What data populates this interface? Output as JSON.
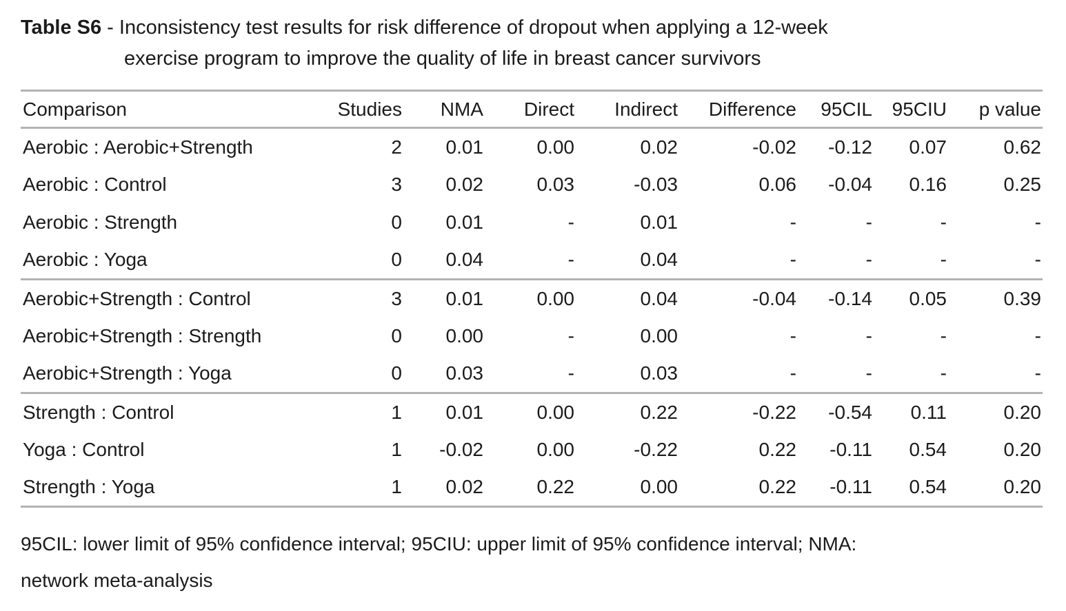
{
  "title": {
    "label": "Table S6",
    "separator": " - ",
    "line1": "Inconsistency test results for risk difference of dropout when applying a 12-week",
    "line2": "exercise program to improve the quality of life in breast cancer survivors"
  },
  "table": {
    "columns": [
      {
        "key": "comparison",
        "label": "Comparison"
      },
      {
        "key": "studies",
        "label": "Studies"
      },
      {
        "key": "nma",
        "label": "NMA"
      },
      {
        "key": "direct",
        "label": "Direct"
      },
      {
        "key": "indirect",
        "label": "Indirect"
      },
      {
        "key": "difference",
        "label": "Difference"
      },
      {
        "key": "ci-lower-95",
        "label": "95CIL"
      },
      {
        "key": "ci-upper-95",
        "label": "95CIU"
      },
      {
        "key": "p-value",
        "label": "p value"
      }
    ],
    "groups": [
      {
        "rows": [
          [
            "Aerobic : Aerobic+Strength",
            "2",
            "0.01",
            "0.00",
            "0.02",
            "-0.02",
            "-0.12",
            "0.07",
            "0.62"
          ],
          [
            "Aerobic : Control",
            "3",
            "0.02",
            "0.03",
            "-0.03",
            "0.06",
            "-0.04",
            "0.16",
            "0.25"
          ],
          [
            "Aerobic : Strength",
            "0",
            "0.01",
            "-",
            "0.01",
            "-",
            "-",
            "-",
            "-"
          ],
          [
            "Aerobic : Yoga",
            "0",
            "0.04",
            "-",
            "0.04",
            "-",
            "-",
            "-",
            "-"
          ]
        ]
      },
      {
        "rows": [
          [
            "Aerobic+Strength : Control",
            "3",
            "0.01",
            "0.00",
            "0.04",
            "-0.04",
            "-0.14",
            "0.05",
            "0.39"
          ],
          [
            "Aerobic+Strength : Strength",
            "0",
            "0.00",
            "-",
            "0.00",
            "-",
            "-",
            "-",
            "-"
          ],
          [
            "Aerobic+Strength : Yoga",
            "0",
            "0.03",
            "-",
            "0.03",
            "-",
            "-",
            "-",
            "-"
          ]
        ]
      },
      {
        "rows": [
          [
            "Strength : Control",
            "1",
            "0.01",
            "0.00",
            "0.22",
            "-0.22",
            "-0.54",
            "0.11",
            "0.20"
          ],
          [
            "Yoga : Control",
            "1",
            "-0.02",
            "0.00",
            "-0.22",
            "0.22",
            "-0.11",
            "0.54",
            "0.20"
          ],
          [
            "Strength : Yoga",
            "1",
            "0.02",
            "0.22",
            "0.00",
            "0.22",
            "-0.11",
            "0.54",
            "0.20"
          ]
        ]
      }
    ]
  },
  "footnote": {
    "line1": "95CIL: lower limit of 95% confidence interval; 95CIU: upper limit of 95% confidence interval; NMA:",
    "line2": "network meta-analysis"
  },
  "colors": {
    "rule": "#b3b3b3",
    "text": "#1b1b1b",
    "background": "#ffffff"
  }
}
